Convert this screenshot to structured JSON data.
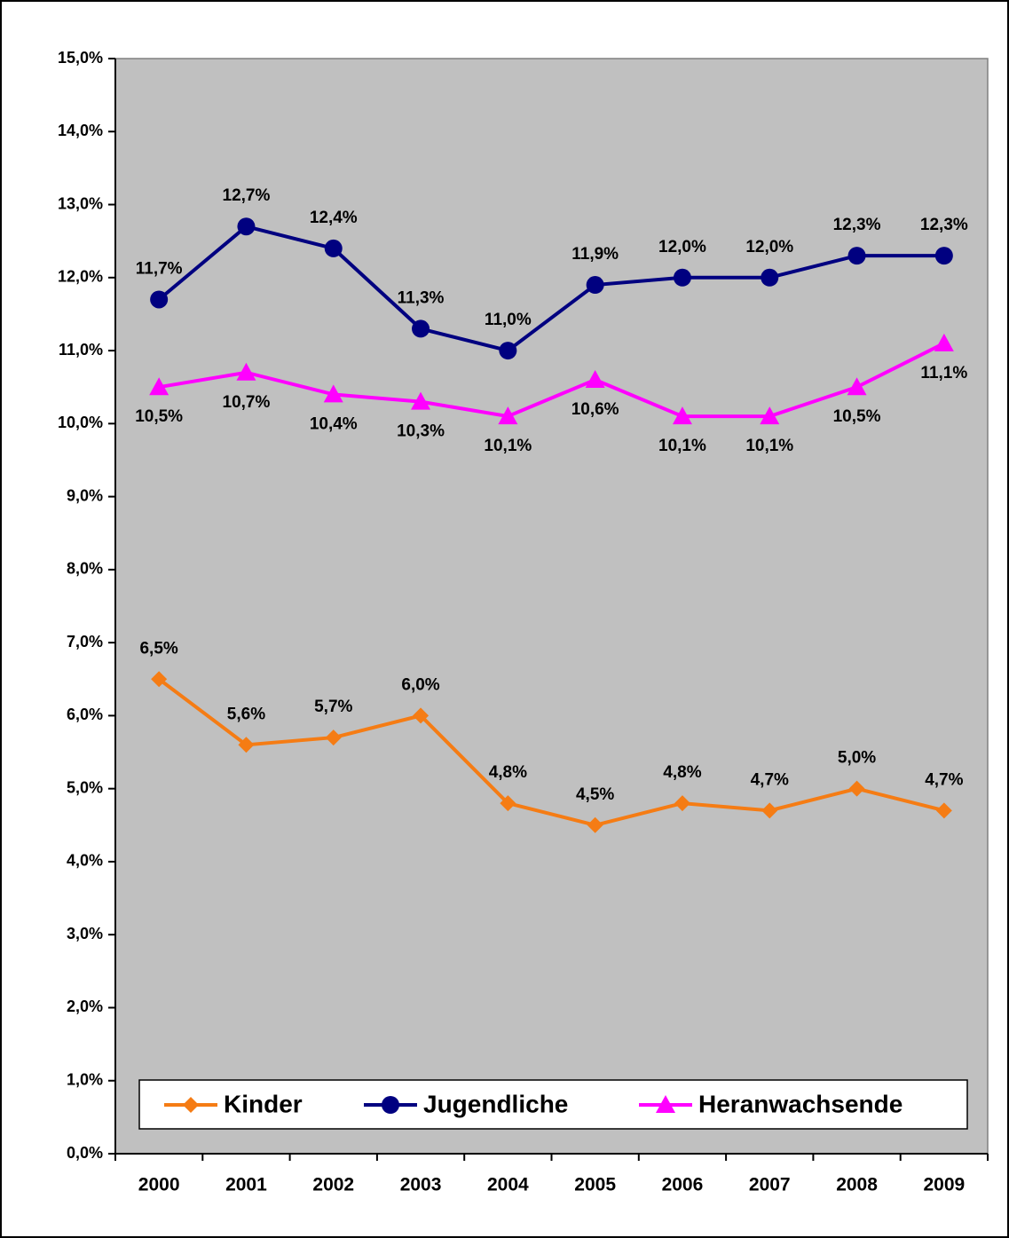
{
  "chart_data": {
    "type": "line",
    "categories": [
      "2000",
      "2001",
      "2002",
      "2003",
      "2004",
      "2005",
      "2006",
      "2007",
      "2008",
      "2009"
    ],
    "series": [
      {
        "name": "Kinder",
        "color": "#f57c14",
        "marker": "diamond",
        "values": [
          6.5,
          5.6,
          5.7,
          6.0,
          4.8,
          4.5,
          4.8,
          4.7,
          5.0,
          4.7
        ],
        "value_labels": [
          "6,5%",
          "5,6%",
          "5,7%",
          "6,0%",
          "4,8%",
          "4,5%",
          "4,8%",
          "4,7%",
          "5,0%",
          "4,7%"
        ]
      },
      {
        "name": "Jugendliche",
        "color": "#000080",
        "marker": "circle",
        "values": [
          11.7,
          12.7,
          12.4,
          11.3,
          11.0,
          11.9,
          12.0,
          12.0,
          12.3,
          12.3
        ],
        "value_labels": [
          "11,7%",
          "12,7%",
          "12,4%",
          "11,3%",
          "11,0%",
          "11,9%",
          "12,0%",
          "12,0%",
          "12,3%",
          "12,3%"
        ]
      },
      {
        "name": "Heranwachsende",
        "color": "#ff00ff",
        "marker": "triangle",
        "values": [
          10.5,
          10.7,
          10.4,
          10.3,
          10.1,
          10.6,
          10.1,
          10.1,
          10.5,
          11.1
        ],
        "value_labels": [
          "10,5%",
          "10,7%",
          "10,4%",
          "10,3%",
          "10,1%",
          "10,6%",
          "10,1%",
          "10,1%",
          "10,5%",
          "11,1%"
        ]
      }
    ],
    "ylim": [
      0,
      15
    ],
    "yticks": [
      {
        "value": 0,
        "label": "0,0%"
      },
      {
        "value": 1,
        "label": "1,0%"
      },
      {
        "value": 2,
        "label": "2,0%"
      },
      {
        "value": 3,
        "label": "3,0%"
      },
      {
        "value": 4,
        "label": "4,0%"
      },
      {
        "value": 5,
        "label": "5,0%"
      },
      {
        "value": 6,
        "label": "6,0%"
      },
      {
        "value": 7,
        "label": "7,0%"
      },
      {
        "value": 8,
        "label": "8,0%"
      },
      {
        "value": 9,
        "label": "9,0%"
      },
      {
        "value": 10,
        "label": "10,0%"
      },
      {
        "value": 11,
        "label": "11,0%"
      },
      {
        "value": 12,
        "label": "12,0%"
      },
      {
        "value": 13,
        "label": "13,0%"
      },
      {
        "value": 14,
        "label": "14,0%"
      },
      {
        "value": 15,
        "label": "15,0%"
      }
    ],
    "legend": "bottom",
    "plot_background": "#c0c0c0"
  }
}
